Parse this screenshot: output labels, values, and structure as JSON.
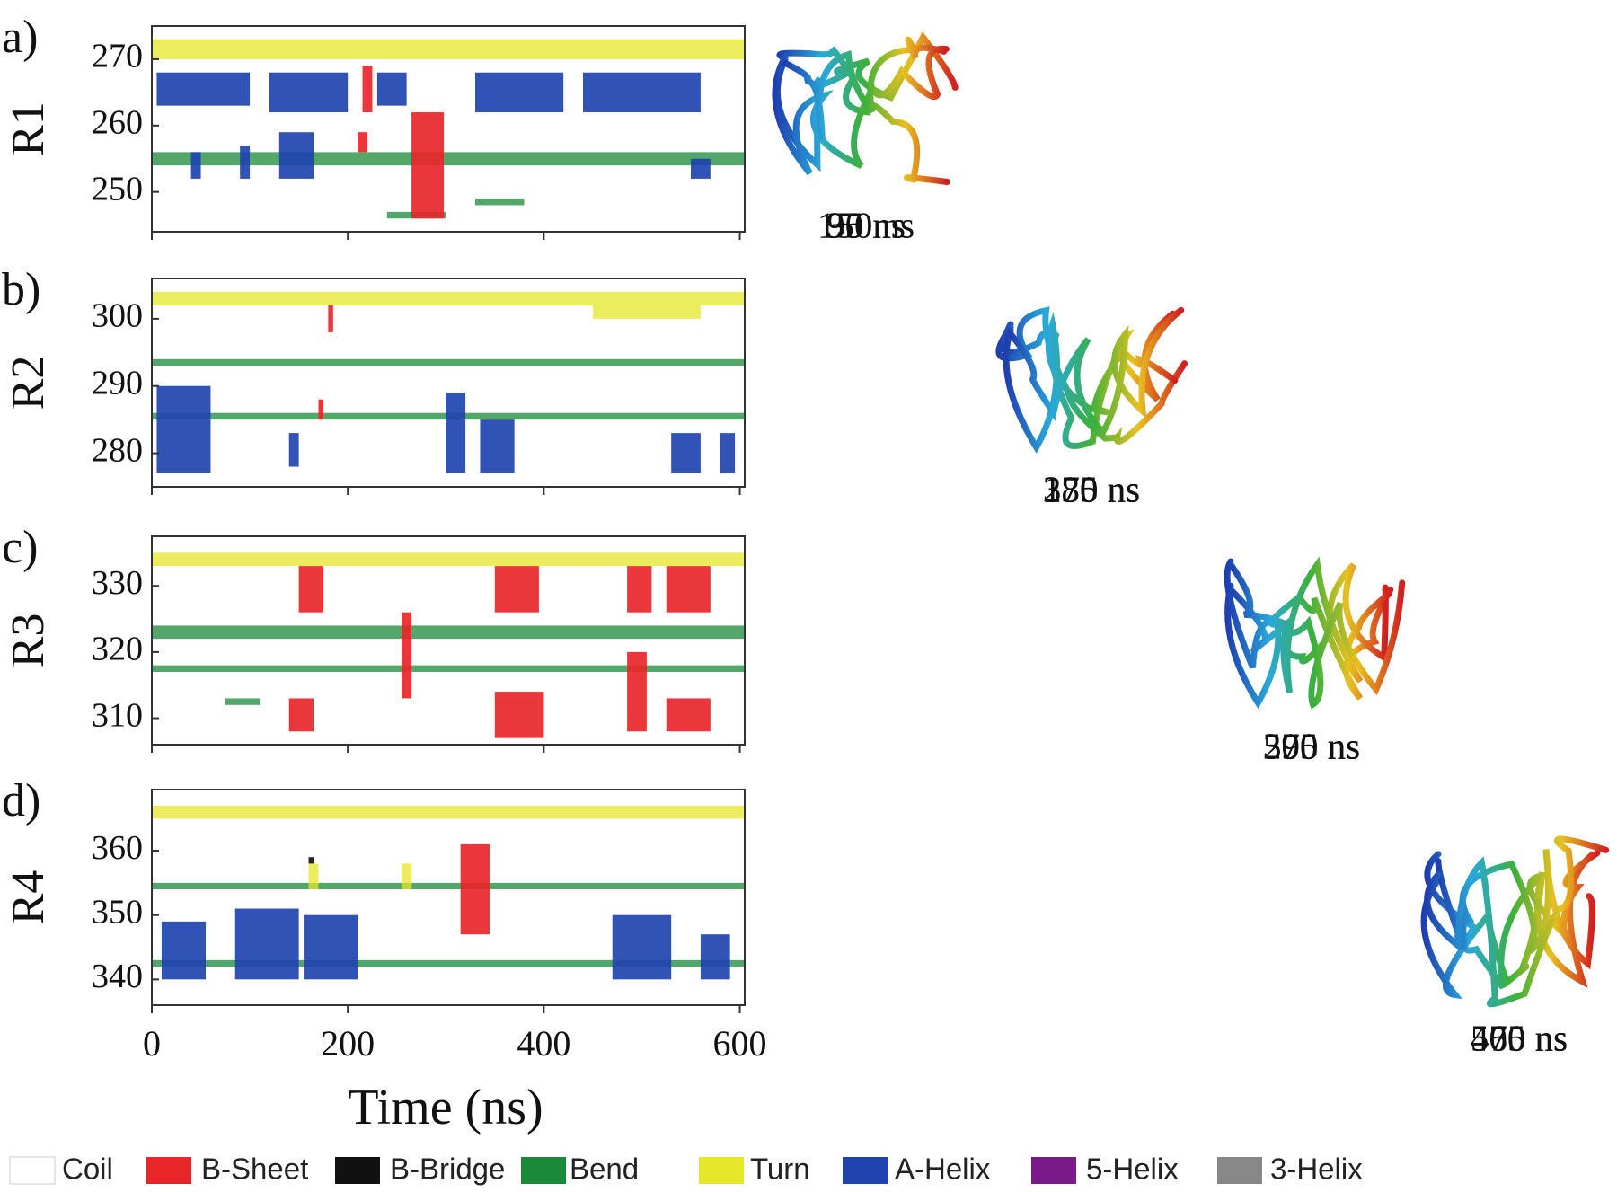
{
  "xlabel": "Time (ns)",
  "xlim": [
    0,
    605
  ],
  "xticks": [
    0,
    200,
    400,
    600
  ],
  "legend": [
    {
      "name": "Coil",
      "color": "#ffffff"
    },
    {
      "name": "B-Sheet",
      "color": "#e8262a"
    },
    {
      "name": "B-Bridge",
      "color": "#111111"
    },
    {
      "name": "Bend",
      "color": "#1a8a3a"
    },
    {
      "name": "Turn",
      "color": "#e6e62a"
    },
    {
      "name": "A-Helix",
      "color": "#1f44b0"
    },
    {
      "name": "5-Helix",
      "color": "#7a1a8a"
    },
    {
      "name": "3-Helix",
      "color": "#888888"
    }
  ],
  "panels": [
    {
      "label": "a)",
      "ylabel": "R1",
      "ylim": [
        244,
        275
      ],
      "yticks": [
        250,
        260,
        270
      ],
      "snapshots": [
        "95 ns",
        "170 ns",
        "295 ns",
        "470 ns"
      ],
      "blocks": [
        {
          "state": "Turn",
          "t": [
            0,
            605
          ],
          "res": [
            270,
            273
          ]
        },
        {
          "state": "Bend",
          "t": [
            0,
            605
          ],
          "res": [
            254,
            256
          ]
        },
        {
          "state": "Bend",
          "t": [
            240,
            300
          ],
          "res": [
            246,
            247
          ]
        },
        {
          "state": "Bend",
          "t": [
            330,
            380
          ],
          "res": [
            248,
            249
          ]
        },
        {
          "state": "A-Helix",
          "t": [
            5,
            100
          ],
          "res": [
            263,
            268
          ]
        },
        {
          "state": "A-Helix",
          "t": [
            120,
            200
          ],
          "res": [
            262,
            268
          ]
        },
        {
          "state": "A-Helix",
          "t": [
            230,
            260
          ],
          "res": [
            263,
            268
          ]
        },
        {
          "state": "A-Helix",
          "t": [
            330,
            420
          ],
          "res": [
            262,
            268
          ]
        },
        {
          "state": "A-Helix",
          "t": [
            440,
            560
          ],
          "res": [
            262,
            268
          ]
        },
        {
          "state": "A-Helix",
          "t": [
            40,
            50
          ],
          "res": [
            252,
            256
          ]
        },
        {
          "state": "A-Helix",
          "t": [
            90,
            100
          ],
          "res": [
            252,
            257
          ]
        },
        {
          "state": "A-Helix",
          "t": [
            130,
            165
          ],
          "res": [
            252,
            259
          ]
        },
        {
          "state": "A-Helix",
          "t": [
            550,
            570
          ],
          "res": [
            252,
            255
          ]
        },
        {
          "state": "B-Sheet",
          "t": [
            215,
            225
          ],
          "res": [
            262,
            269
          ]
        },
        {
          "state": "B-Sheet",
          "t": [
            210,
            220
          ],
          "res": [
            256,
            259
          ]
        },
        {
          "state": "B-Sheet",
          "t": [
            265,
            298
          ],
          "res": [
            246,
            262
          ]
        }
      ]
    },
    {
      "label": "b)",
      "ylabel": "R2",
      "ylim": [
        275,
        306
      ],
      "yticks": [
        280,
        290,
        300
      ],
      "snapshots": [
        "30 ns",
        "175 ns",
        "300 ns",
        "570 ns"
      ],
      "blocks": [
        {
          "state": "Turn",
          "t": [
            0,
            605
          ],
          "res": [
            302,
            304
          ]
        },
        {
          "state": "Turn",
          "t": [
            450,
            560
          ],
          "res": [
            300,
            302
          ]
        },
        {
          "state": "Bend",
          "t": [
            0,
            605
          ],
          "res": [
            293,
            294
          ]
        },
        {
          "state": "Bend",
          "t": [
            0,
            605
          ],
          "res": [
            285,
            286
          ]
        },
        {
          "state": "A-Helix",
          "t": [
            5,
            60
          ],
          "res": [
            277,
            290
          ]
        },
        {
          "state": "A-Helix",
          "t": [
            140,
            150
          ],
          "res": [
            278,
            283
          ]
        },
        {
          "state": "A-Helix",
          "t": [
            300,
            320
          ],
          "res": [
            277,
            289
          ]
        },
        {
          "state": "A-Helix",
          "t": [
            335,
            370
          ],
          "res": [
            277,
            285
          ]
        },
        {
          "state": "A-Helix",
          "t": [
            530,
            560
          ],
          "res": [
            277,
            283
          ]
        },
        {
          "state": "A-Helix",
          "t": [
            580,
            595
          ],
          "res": [
            277,
            283
          ]
        },
        {
          "state": "B-Sheet",
          "t": [
            170,
            175
          ],
          "res": [
            285,
            288
          ]
        },
        {
          "state": "B-Sheet",
          "t": [
            180,
            185
          ],
          "res": [
            298,
            302
          ]
        }
      ]
    },
    {
      "label": "c)",
      "ylabel": "R3",
      "ylim": [
        306,
        337.5
      ],
      "yticks": [
        310,
        320,
        330
      ],
      "snapshots": [
        "150 ns",
        "280 ns",
        "370 ns",
        "500 ns"
      ],
      "blocks": [
        {
          "state": "Turn",
          "t": [
            0,
            605
          ],
          "res": [
            333,
            335
          ]
        },
        {
          "state": "Bend",
          "t": [
            0,
            605
          ],
          "res": [
            322,
            324
          ]
        },
        {
          "state": "Bend",
          "t": [
            0,
            605
          ],
          "res": [
            317,
            318
          ]
        },
        {
          "state": "Bend",
          "t": [
            75,
            110
          ],
          "res": [
            312,
            313
          ]
        },
        {
          "state": "B-Sheet",
          "t": [
            150,
            175
          ],
          "res": [
            326,
            333
          ]
        },
        {
          "state": "B-Sheet",
          "t": [
            140,
            165
          ],
          "res": [
            308,
            313
          ]
        },
        {
          "state": "B-Sheet",
          "t": [
            255,
            265
          ],
          "res": [
            313,
            326
          ]
        },
        {
          "state": "B-Sheet",
          "t": [
            350,
            395
          ],
          "res": [
            326,
            333
          ]
        },
        {
          "state": "B-Sheet",
          "t": [
            350,
            400
          ],
          "res": [
            307,
            314
          ]
        },
        {
          "state": "B-Sheet",
          "t": [
            485,
            510
          ],
          "res": [
            326,
            333
          ]
        },
        {
          "state": "B-Sheet",
          "t": [
            485,
            505
          ],
          "res": [
            308,
            320
          ]
        },
        {
          "state": "B-Sheet",
          "t": [
            525,
            570
          ],
          "res": [
            326,
            333
          ]
        },
        {
          "state": "B-Sheet",
          "t": [
            525,
            570
          ],
          "res": [
            308,
            313
          ]
        }
      ]
    },
    {
      "label": "d)",
      "ylabel": "R4",
      "ylim": [
        336,
        369.5
      ],
      "yticks": [
        340,
        350,
        360
      ],
      "snapshots": [
        "95 ns",
        "330 ns",
        "500 ns",
        "565 ns"
      ],
      "blocks": [
        {
          "state": "Turn",
          "t": [
            0,
            605
          ],
          "res": [
            365,
            367
          ]
        },
        {
          "state": "Bend",
          "t": [
            0,
            605
          ],
          "res": [
            342,
            343
          ]
        },
        {
          "state": "Bend",
          "t": [
            0,
            605
          ],
          "res": [
            354,
            355
          ]
        },
        {
          "state": "A-Helix",
          "t": [
            10,
            55
          ],
          "res": [
            340,
            349
          ]
        },
        {
          "state": "A-Helix",
          "t": [
            85,
            150
          ],
          "res": [
            340,
            351
          ]
        },
        {
          "state": "A-Helix",
          "t": [
            155,
            210
          ],
          "res": [
            340,
            350
          ]
        },
        {
          "state": "A-Helix",
          "t": [
            470,
            530
          ],
          "res": [
            340,
            350
          ]
        },
        {
          "state": "A-Helix",
          "t": [
            560,
            590
          ],
          "res": [
            340,
            347
          ]
        },
        {
          "state": "B-Sheet",
          "t": [
            315,
            345
          ],
          "res": [
            347,
            361
          ]
        },
        {
          "state": "Turn",
          "t": [
            160,
            170
          ],
          "res": [
            354,
            358
          ]
        },
        {
          "state": "Turn",
          "t": [
            255,
            265
          ],
          "res": [
            354,
            358
          ]
        },
        {
          "state": "B-Bridge",
          "t": [
            160,
            165
          ],
          "res": [
            358,
            359
          ]
        }
      ]
    }
  ]
}
